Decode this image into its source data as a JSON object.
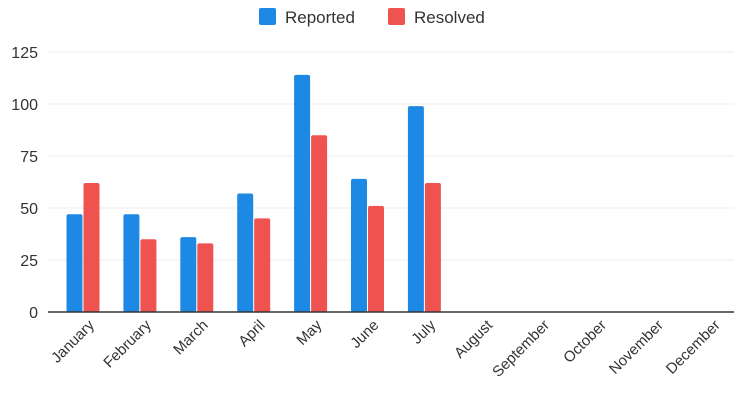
{
  "chart_data": {
    "type": "bar",
    "categories": [
      "January",
      "February",
      "March",
      "April",
      "May",
      "June",
      "July",
      "August",
      "September",
      "October",
      "November",
      "December"
    ],
    "series": [
      {
        "name": "Reported",
        "color": "#1e88e5",
        "values": [
          47,
          47,
          36,
          57,
          114,
          64,
          99,
          null,
          null,
          null,
          null,
          null
        ]
      },
      {
        "name": "Resolved",
        "color": "#ef5350",
        "values": [
          62,
          35,
          33,
          45,
          85,
          51,
          62,
          null,
          null,
          null,
          null,
          null
        ]
      }
    ],
    "y_ticks": [
      "0",
      "25",
      "50",
      "75",
      "100",
      "125"
    ],
    "ylim": [
      0,
      125
    ],
    "grid": "horizontal",
    "legend_position": "top"
  }
}
